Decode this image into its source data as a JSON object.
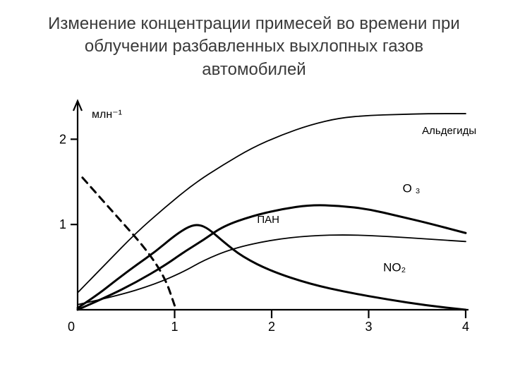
{
  "title_lines": [
    "Изменение концентрации примесей во времени при",
    "облучении разбавленных выхлопных газов",
    "автомобилей"
  ],
  "chart": {
    "type": "line",
    "background_color": "#ffffff",
    "line_color": "#000000",
    "text_color": "#000000",
    "ylabel": "млн⁻¹",
    "ylabel_fontsize": 16,
    "xlim": [
      0,
      4
    ],
    "ylim": [
      0,
      2.4
    ],
    "xtick_values": [
      0,
      1,
      2,
      3,
      4
    ],
    "xtick_labels": [
      "0",
      "1",
      "2",
      "3",
      "4"
    ],
    "ytick_values": [
      1,
      2
    ],
    "ytick_labels": [
      "1",
      "2"
    ],
    "tick_fontsize": 18,
    "axis_stroke_width": 2.2,
    "y_axis_arrow": true,
    "series": [
      {
        "name": "Альдегиды",
        "label": "Альдегиды",
        "stroke_width": 1.8,
        "dash": "none",
        "points": [
          [
            0.0,
            0.2
          ],
          [
            0.3,
            0.55
          ],
          [
            0.6,
            0.9
          ],
          [
            0.9,
            1.2
          ],
          [
            1.2,
            1.48
          ],
          [
            1.5,
            1.7
          ],
          [
            1.8,
            1.9
          ],
          [
            2.1,
            2.05
          ],
          [
            2.4,
            2.17
          ],
          [
            2.7,
            2.25
          ],
          [
            3.0,
            2.28
          ],
          [
            3.3,
            2.29
          ],
          [
            3.6,
            2.3
          ],
          [
            4.0,
            2.3
          ]
        ],
        "label_pos": [
          3.55,
          2.06
        ],
        "label_fontsize": 15
      },
      {
        "name": "O3",
        "label": "O ₃",
        "stroke_width": 3.0,
        "dash": "none",
        "points": [
          [
            0.0,
            0.0
          ],
          [
            0.3,
            0.15
          ],
          [
            0.6,
            0.32
          ],
          [
            0.9,
            0.52
          ],
          [
            1.1,
            0.68
          ],
          [
            1.3,
            0.82
          ],
          [
            1.5,
            0.98
          ],
          [
            1.8,
            1.1
          ],
          [
            2.1,
            1.18
          ],
          [
            2.4,
            1.23
          ],
          [
            2.7,
            1.22
          ],
          [
            3.0,
            1.18
          ],
          [
            3.3,
            1.1
          ],
          [
            3.6,
            1.02
          ],
          [
            4.0,
            0.9
          ]
        ],
        "label_pos": [
          3.35,
          1.38
        ],
        "label_fontsize": 17
      },
      {
        "name": "ПАН",
        "label": "ПАН",
        "stroke_width": 1.8,
        "dash": "none",
        "points": [
          [
            0.0,
            0.06
          ],
          [
            0.4,
            0.16
          ],
          [
            0.8,
            0.3
          ],
          [
            1.1,
            0.45
          ],
          [
            1.3,
            0.58
          ],
          [
            1.6,
            0.72
          ],
          [
            2.0,
            0.82
          ],
          [
            2.4,
            0.87
          ],
          [
            2.8,
            0.88
          ],
          [
            3.2,
            0.86
          ],
          [
            3.6,
            0.83
          ],
          [
            4.0,
            0.8
          ]
        ],
        "label_pos": [
          1.85,
          1.02
        ],
        "label_fontsize": 15
      },
      {
        "name": "NO2",
        "label": "NO₂",
        "stroke_width": 3.0,
        "dash": "none",
        "points": [
          [
            0.0,
            0.02
          ],
          [
            0.2,
            0.17
          ],
          [
            0.4,
            0.35
          ],
          [
            0.6,
            0.52
          ],
          [
            0.8,
            0.68
          ],
          [
            1.0,
            0.87
          ],
          [
            1.15,
            0.98
          ],
          [
            1.25,
            1.0
          ],
          [
            1.35,
            0.95
          ],
          [
            1.5,
            0.8
          ],
          [
            1.7,
            0.62
          ],
          [
            2.0,
            0.45
          ],
          [
            2.4,
            0.3
          ],
          [
            2.8,
            0.2
          ],
          [
            3.2,
            0.12
          ],
          [
            3.6,
            0.05
          ],
          [
            4.0,
            0.0
          ]
        ],
        "label_pos": [
          3.15,
          0.45
        ],
        "label_fontsize": 17
      },
      {
        "name": "dashed",
        "label": "",
        "stroke_width": 3.0,
        "dash": "10,8",
        "points": [
          [
            0.05,
            1.55
          ],
          [
            0.4,
            1.1
          ],
          [
            0.7,
            0.72
          ],
          [
            0.9,
            0.38
          ],
          [
            1.0,
            0.05
          ]
        ],
        "label_pos": null,
        "label_fontsize": 0
      }
    ]
  }
}
